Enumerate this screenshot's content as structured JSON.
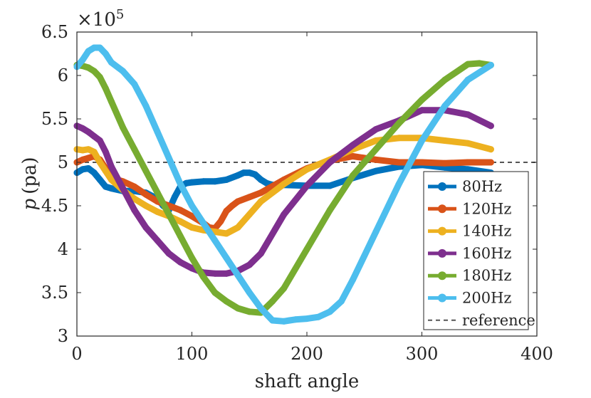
{
  "chart_data": {
    "type": "line",
    "title": "",
    "xlabel": "shaft angle",
    "ylabel_symbol": "p",
    "ylabel_unit": "(pa)",
    "y_exponent_label": "×10",
    "y_exponent_power": "5",
    "xlim": [
      0,
      400
    ],
    "ylim": [
      3,
      6.5
    ],
    "xticks": [
      0,
      100,
      200,
      300,
      400
    ],
    "xtick_labels": [
      "0",
      "100",
      "200",
      "300",
      "400"
    ],
    "yticks": [
      3,
      3.5,
      4,
      4.5,
      5,
      5.5,
      6,
      6.5
    ],
    "ytick_labels": [
      "3",
      "3.5",
      "4",
      "4.5",
      "5",
      "5.5",
      "6",
      "6.5"
    ],
    "legend_position": "bottom-right",
    "reference": {
      "name": "reference",
      "value": 5.0,
      "color": "#555555",
      "style": "dashed"
    },
    "series": [
      {
        "name": "80Hz",
        "color": "#0072BD",
        "x": [
          0,
          5,
          10,
          15,
          20,
          25,
          30,
          40,
          50,
          60,
          70,
          75,
          80,
          85,
          90,
          95,
          100,
          110,
          120,
          130,
          140,
          145,
          150,
          155,
          160,
          165,
          170,
          180,
          200,
          220,
          240,
          260,
          280,
          300,
          320,
          340,
          360
        ],
        "y": [
          4.88,
          4.92,
          4.93,
          4.88,
          4.8,
          4.72,
          4.7,
          4.67,
          4.67,
          4.65,
          4.58,
          4.5,
          4.45,
          4.6,
          4.72,
          4.76,
          4.77,
          4.78,
          4.78,
          4.8,
          4.85,
          4.88,
          4.88,
          4.86,
          4.8,
          4.76,
          4.74,
          4.74,
          4.73,
          4.73,
          4.82,
          4.9,
          4.95,
          4.97,
          4.94,
          4.92,
          4.88
        ]
      },
      {
        "name": "120Hz",
        "color": "#D95319",
        "x": [
          0,
          5,
          10,
          15,
          20,
          25,
          30,
          40,
          50,
          60,
          70,
          80,
          90,
          100,
          110,
          115,
          120,
          125,
          130,
          135,
          140,
          150,
          160,
          180,
          200,
          220,
          240,
          260,
          280,
          300,
          320,
          340,
          360
        ],
        "y": [
          5.0,
          5.03,
          5.05,
          5.07,
          5.03,
          4.93,
          4.82,
          4.78,
          4.72,
          4.63,
          4.55,
          4.5,
          4.45,
          4.38,
          4.3,
          4.25,
          4.24,
          4.32,
          4.44,
          4.5,
          4.55,
          4.6,
          4.65,
          4.8,
          4.93,
          5.02,
          5.07,
          5.03,
          5.0,
          5.0,
          4.99,
          5.0,
          5.0
        ]
      },
      {
        "name": "140Hz",
        "color": "#EDB120",
        "x": [
          0,
          5,
          10,
          15,
          20,
          25,
          30,
          40,
          50,
          60,
          70,
          80,
          90,
          100,
          110,
          120,
          130,
          140,
          150,
          160,
          180,
          200,
          220,
          240,
          260,
          280,
          300,
          320,
          340,
          360
        ],
        "y": [
          5.15,
          5.14,
          5.15,
          5.12,
          5.0,
          4.9,
          4.8,
          4.68,
          4.58,
          4.5,
          4.43,
          4.38,
          4.32,
          4.25,
          4.22,
          4.2,
          4.18,
          4.25,
          4.4,
          4.55,
          4.75,
          4.92,
          5.03,
          5.15,
          5.25,
          5.28,
          5.28,
          5.25,
          5.22,
          5.15
        ]
      },
      {
        "name": "160Hz",
        "color": "#7E2F8E",
        "x": [
          0,
          5,
          10,
          15,
          20,
          25,
          30,
          40,
          50,
          60,
          70,
          80,
          90,
          100,
          110,
          120,
          130,
          140,
          150,
          160,
          180,
          200,
          220,
          240,
          260,
          280,
          300,
          320,
          340,
          360
        ],
        "y": [
          5.42,
          5.39,
          5.35,
          5.3,
          5.25,
          5.12,
          4.95,
          4.7,
          4.45,
          4.25,
          4.1,
          3.95,
          3.85,
          3.78,
          3.73,
          3.72,
          3.72,
          3.75,
          3.82,
          3.95,
          4.4,
          4.73,
          5.0,
          5.2,
          5.38,
          5.48,
          5.6,
          5.6,
          5.55,
          5.42
        ]
      },
      {
        "name": "180Hz",
        "color": "#77AC30",
        "x": [
          0,
          5,
          10,
          15,
          20,
          25,
          30,
          40,
          50,
          60,
          70,
          80,
          90,
          100,
          110,
          120,
          130,
          140,
          150,
          160,
          170,
          180,
          200,
          220,
          240,
          260,
          280,
          300,
          320,
          340,
          350,
          360
        ],
        "y": [
          6.12,
          6.11,
          6.09,
          6.05,
          5.98,
          5.85,
          5.7,
          5.4,
          5.15,
          4.9,
          4.65,
          4.4,
          4.15,
          3.9,
          3.68,
          3.5,
          3.4,
          3.32,
          3.28,
          3.27,
          3.4,
          3.55,
          4.0,
          4.45,
          4.85,
          5.15,
          5.45,
          5.72,
          5.95,
          6.13,
          6.14,
          6.12
        ]
      },
      {
        "name": "200Hz",
        "color": "#4DBEEE",
        "x": [
          0,
          5,
          10,
          15,
          20,
          25,
          30,
          40,
          50,
          60,
          70,
          80,
          90,
          100,
          110,
          120,
          130,
          140,
          150,
          160,
          170,
          180,
          185,
          190,
          200,
          210,
          220,
          230,
          240,
          260,
          280,
          300,
          320,
          340,
          360
        ],
        "y": [
          6.1,
          6.18,
          6.28,
          6.32,
          6.32,
          6.25,
          6.15,
          6.05,
          5.9,
          5.65,
          5.35,
          5.05,
          4.75,
          4.5,
          4.3,
          4.1,
          3.9,
          3.7,
          3.5,
          3.32,
          3.18,
          3.17,
          3.18,
          3.19,
          3.2,
          3.22,
          3.28,
          3.4,
          3.65,
          4.2,
          4.75,
          5.25,
          5.65,
          5.95,
          6.12
        ]
      }
    ]
  }
}
